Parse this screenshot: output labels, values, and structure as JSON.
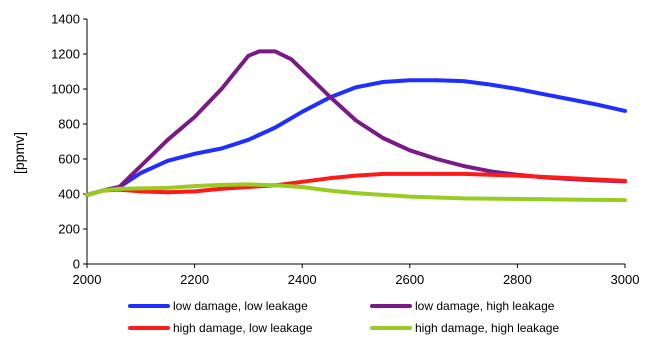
{
  "chart_data": {
    "type": "line",
    "title": "",
    "xlabel": "",
    "ylabel": "[ppmv]",
    "xlim": [
      2000,
      3000
    ],
    "ylim": [
      0,
      1400
    ],
    "xticks": [
      2000,
      2200,
      2400,
      2600,
      2800,
      3000
    ],
    "yticks": [
      0,
      200,
      400,
      600,
      800,
      1000,
      1200,
      1400
    ],
    "grid": false,
    "legend_position": "bottom",
    "series": [
      {
        "name": "low damage, low leakage",
        "color": "#1f2fff",
        "x": [
          2000,
          2030,
          2060,
          2100,
          2150,
          2200,
          2250,
          2300,
          2350,
          2400,
          2450,
          2500,
          2550,
          2600,
          2650,
          2700,
          2750,
          2800,
          2850,
          2900,
          2950,
          3000
        ],
        "y": [
          395,
          420,
          440,
          520,
          590,
          630,
          660,
          710,
          780,
          870,
          950,
          1010,
          1040,
          1050,
          1050,
          1045,
          1025,
          1000,
          970,
          940,
          910,
          875
        ]
      },
      {
        "name": "low damage, high leakage",
        "color": "#7a1a86",
        "x": [
          2000,
          2030,
          2060,
          2100,
          2150,
          2200,
          2250,
          2300,
          2320,
          2350,
          2380,
          2400,
          2450,
          2500,
          2550,
          2600,
          2650,
          2700,
          2750,
          2800,
          2850,
          2900,
          2950,
          3000
        ],
        "y": [
          395,
          420,
          440,
          560,
          710,
          840,
          1000,
          1190,
          1215,
          1215,
          1170,
          1110,
          960,
          820,
          720,
          650,
          600,
          560,
          530,
          510,
          495,
          485,
          478,
          472
        ]
      },
      {
        "name": "high damage, low leakage",
        "color": "#ff1a1a",
        "x": [
          2000,
          2030,
          2060,
          2100,
          2150,
          2200,
          2250,
          2300,
          2350,
          2400,
          2450,
          2500,
          2550,
          2600,
          2700,
          2800,
          2900,
          3000
        ],
        "y": [
          395,
          420,
          425,
          415,
          410,
          415,
          430,
          440,
          450,
          470,
          490,
          505,
          515,
          515,
          515,
          505,
          490,
          475
        ]
      },
      {
        "name": "high damage, high leakage",
        "color": "#99cc22",
        "x": [
          2000,
          2030,
          2060,
          2100,
          2150,
          2200,
          2250,
          2300,
          2350,
          2400,
          2450,
          2500,
          2550,
          2600,
          2700,
          2800,
          2900,
          3000
        ],
        "y": [
          395,
          420,
          430,
          432,
          435,
          445,
          452,
          455,
          450,
          440,
          420,
          405,
          395,
          385,
          375,
          372,
          368,
          365
        ]
      }
    ]
  }
}
